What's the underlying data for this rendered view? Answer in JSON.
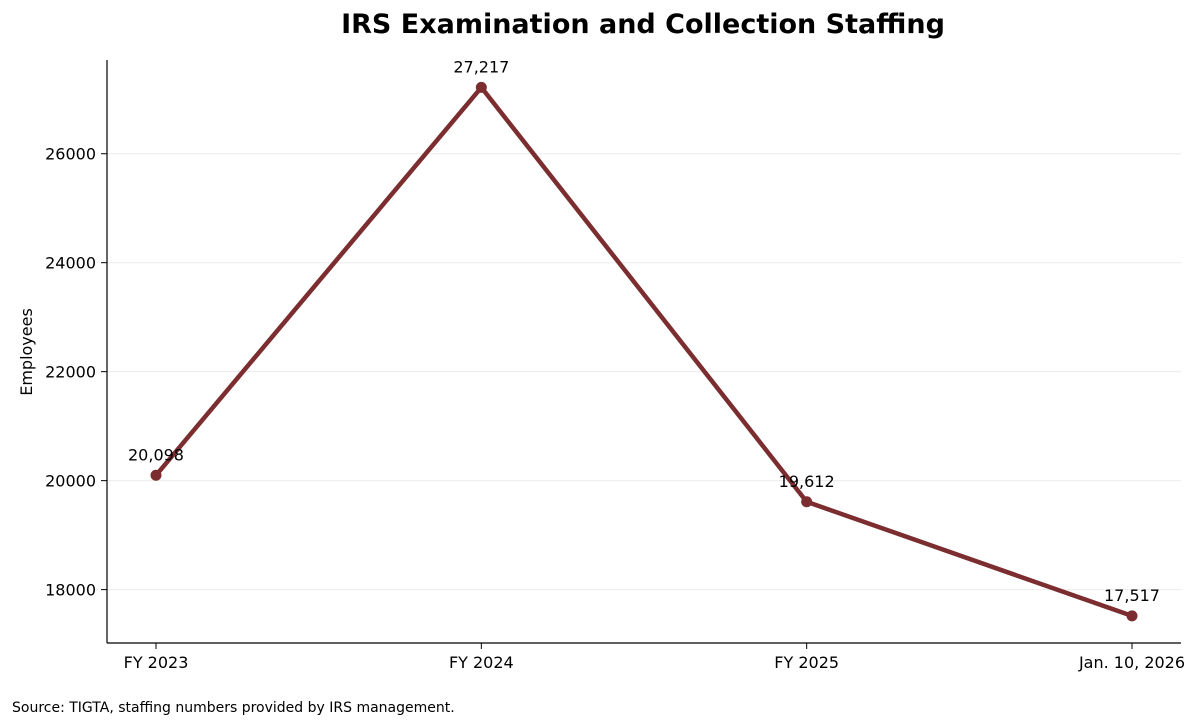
{
  "chart_data": {
    "type": "line",
    "title": "IRS Examination and Collection Staffing",
    "xlabel": "",
    "ylabel": "Employees",
    "categories": [
      "FY 2023",
      "FY 2024",
      "FY 2025",
      "Jan. 10, 2026"
    ],
    "series": [
      {
        "values": [
          20098,
          27217,
          19612,
          17517
        ],
        "data_labels": [
          "20,098",
          "27,217",
          "19,612",
          "17,517"
        ],
        "color": "#7b2d2f"
      }
    ],
    "ylim": [
      17020,
      27720
    ],
    "yticks": [
      18000,
      20000,
      22000,
      24000,
      26000
    ],
    "ytick_labels": [
      "18000",
      "20000",
      "22000",
      "24000",
      "26000"
    ],
    "grid": "horizontal",
    "grid_color": "#ebebeb",
    "axis_color": "#000000",
    "legend": "none",
    "source": "Source: TIGTA, staffing numbers provided by IRS management."
  }
}
